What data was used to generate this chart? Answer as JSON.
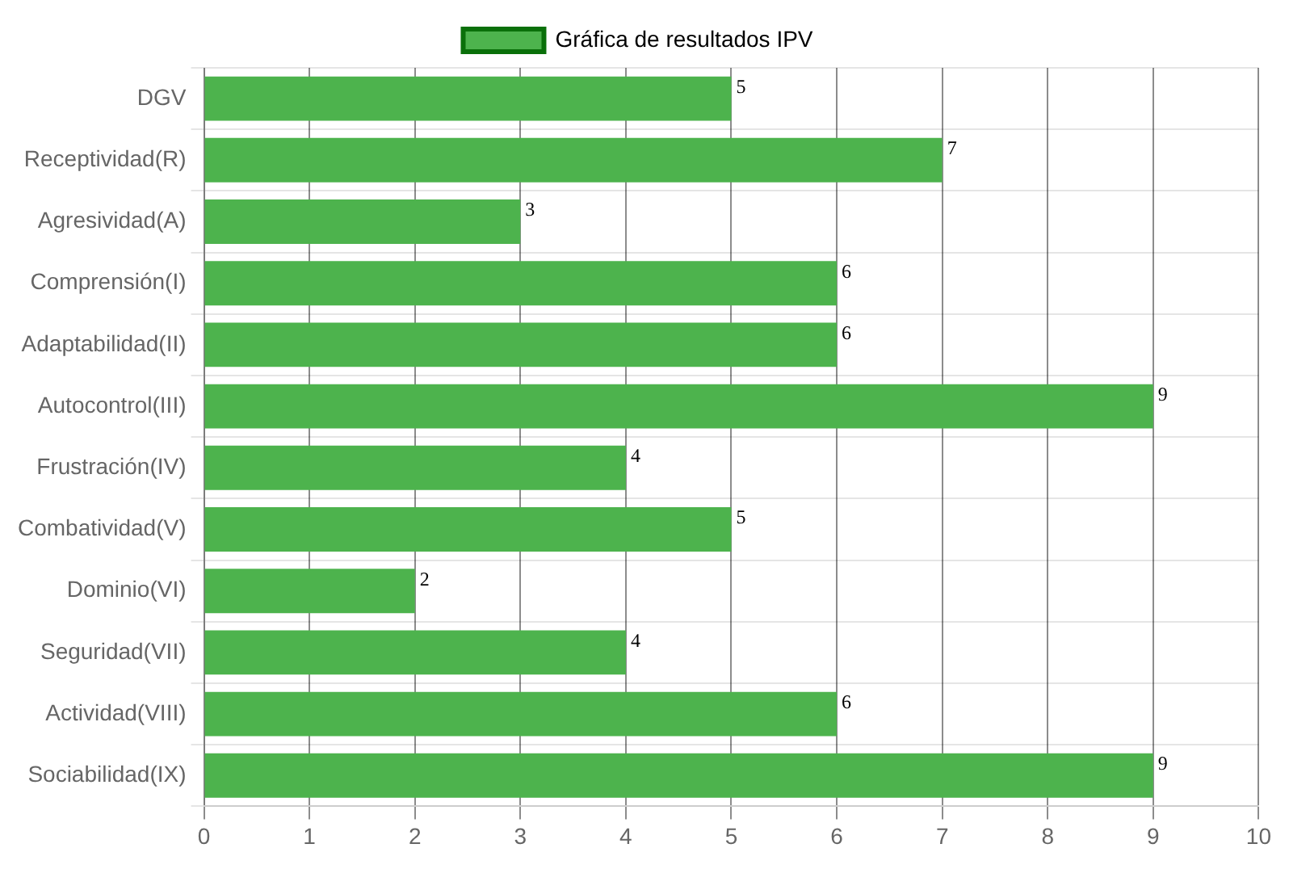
{
  "chart_data": {
    "type": "bar",
    "orientation": "horizontal",
    "categories": [
      "DGV",
      "Receptividad(R)",
      "Agresividad(A)",
      "Comprensión(I)",
      "Adaptabilidad(II)",
      "Autocontrol(III)",
      "Frustración(IV)",
      "Combatividad(V)",
      "Dominio(VI)",
      "Seguridad(VII)",
      "Actividad(VIII)",
      "Sociabilidad(IX)"
    ],
    "series": [
      {
        "name": "Gráfica de resultados IPV",
        "color": "#4db34d",
        "values": [
          5,
          7,
          3,
          6,
          6,
          9,
          4,
          5,
          2,
          4,
          6,
          9
        ]
      }
    ],
    "xlim": [
      0,
      10
    ],
    "xticks": [
      0,
      1,
      2,
      3,
      4,
      5,
      6,
      7,
      8,
      9,
      10
    ],
    "grid": true,
    "legend": "top",
    "data_labels": true
  }
}
